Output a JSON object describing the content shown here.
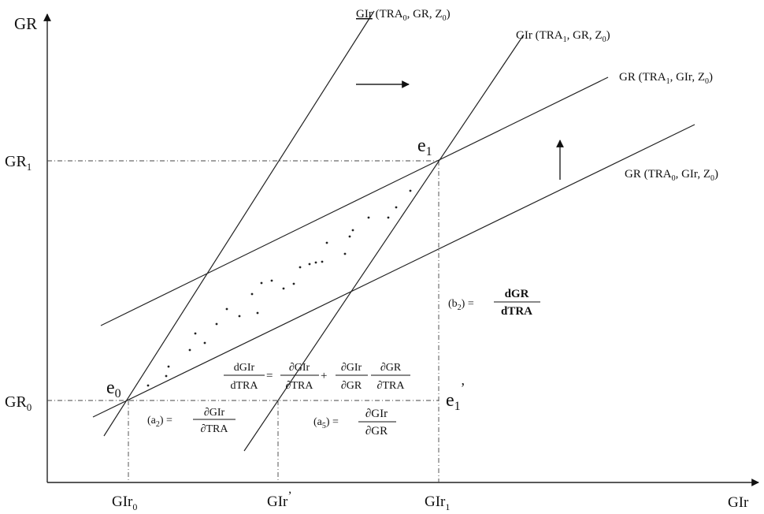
{
  "axes": {
    "y_label": "GR",
    "x_label": "GIr"
  },
  "y_ticks": [
    {
      "base": "GR",
      "sub": "1"
    },
    {
      "base": "GR",
      "sub": "0"
    }
  ],
  "x_ticks": [
    {
      "base": "GIr",
      "sub": "0",
      "sup": ""
    },
    {
      "base": "GIr",
      "sub": "",
      "sup": "’"
    },
    {
      "base": "GIr",
      "sub": "1",
      "sup": ""
    }
  ],
  "curves": {
    "gir_tra0": {
      "name": "GIr",
      "args_pre": "(TRA",
      "sub": "0",
      "args_post": ", GR, Z",
      "sub2": "0",
      "close": ")"
    },
    "gir_tra1": {
      "name": "GIr",
      "args_pre": "(TRA",
      "sub": "1",
      "args_post": ", GR, Z",
      "sub2": "0",
      "close": ")"
    },
    "gr_tra1": {
      "name": "GR",
      "args_pre": "(TRA",
      "sub": "1",
      "args_post": ", GIr, Z",
      "sub2": "0",
      "close": ")"
    },
    "gr_tra0": {
      "name": "GR",
      "args_pre": "(TRA",
      "sub": "0",
      "args_post": ", GIr, Z",
      "sub2": "0",
      "close": ")"
    }
  },
  "points": {
    "e0": {
      "base": "e",
      "sub": "0"
    },
    "e1": {
      "base": "e",
      "sub": "1"
    },
    "e1p": {
      "base": "e",
      "sub": "1",
      "sup": "’"
    }
  },
  "formulas": {
    "a2": {
      "label": "(a",
      "sub": "2",
      "close": ") =",
      "num": "∂GIr",
      "den": "∂TRA"
    },
    "a5": {
      "label": "(a",
      "sub": "5",
      "close": ") =",
      "num": "∂GIr",
      "den": "∂GR"
    },
    "b2": {
      "label": "(b",
      "sub": "2",
      "close": ") =",
      "num": "dGR",
      "den": "dTRA"
    },
    "total": {
      "lhs_num": "dGIr",
      "lhs_den": "dTRA",
      "eq": "=",
      "t1_num": "∂GIr",
      "t1_den": "∂TRA",
      "plus": "+",
      "t2_num": "∂GIr",
      "t2_den": "∂GR",
      "t3_num": "∂GR",
      "t3_den": "∂TRA"
    }
  }
}
